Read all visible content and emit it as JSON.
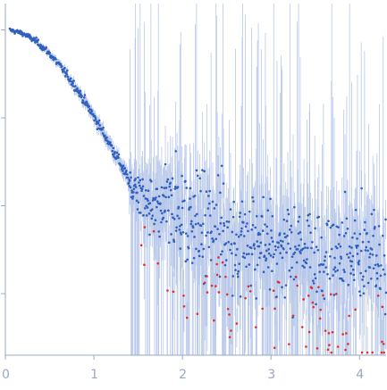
{
  "chart_data": {
    "type": "scatter",
    "title": "",
    "xlabel": "",
    "ylabel": "",
    "xlim": [
      0,
      4.3
    ],
    "ylim": [
      -3.7,
      0.3
    ],
    "log_y": true,
    "grid": false,
    "legend": "none",
    "x_tick_labels": [
      "0",
      "1",
      "2",
      "3",
      "4"
    ],
    "x_ticks": [
      0,
      1,
      2,
      3,
      4
    ],
    "y_ticks": [
      0,
      -1,
      -2,
      -3
    ],
    "colors": {
      "points": "#2f5fbf",
      "outliers": "#e0302a",
      "error_bars": "#b8c8ea",
      "axis": "#9aa8c4"
    },
    "series": [
      {
        "kind": "smooth-curve",
        "x": [
          0.05,
          0.2,
          0.35,
          0.5,
          0.65,
          0.8,
          0.95,
          1.1,
          1.2,
          1.3,
          1.4
        ],
        "y": [
          0.0,
          -0.04,
          -0.13,
          -0.27,
          -0.45,
          -0.66,
          -0.9,
          -1.16,
          -1.33,
          -1.52,
          -1.73
        ],
        "noise": 0.02
      },
      {
        "kind": "noisy-tail",
        "x": [
          1.4,
          1.6,
          1.8,
          2.0,
          2.2,
          2.4,
          2.6,
          2.8,
          3.0,
          3.2,
          3.4,
          3.6,
          3.8,
          4.0,
          4.2,
          4.3
        ],
        "y": [
          -1.75,
          -1.95,
          -2.05,
          -2.1,
          -2.2,
          -2.25,
          -2.35,
          -2.4,
          -2.45,
          -2.5,
          -2.5,
          -2.55,
          -2.6,
          -2.6,
          -2.6,
          -2.6
        ],
        "noise": 0.45,
        "outlier_fraction": 0.15
      }
    ]
  }
}
